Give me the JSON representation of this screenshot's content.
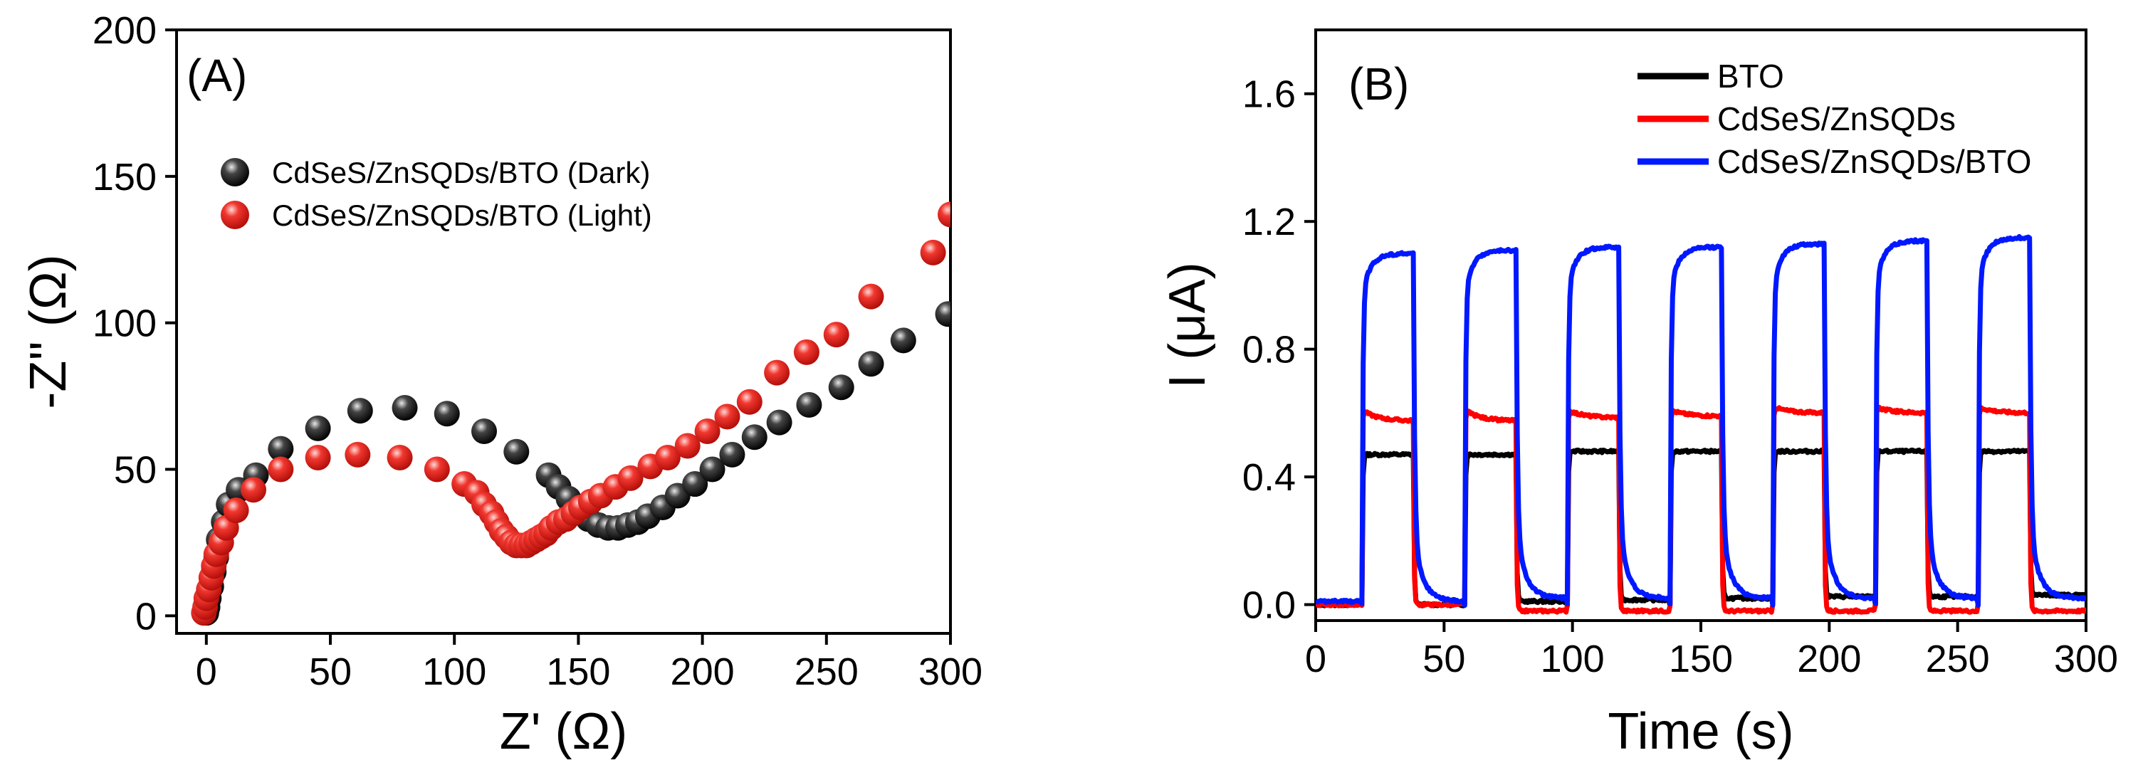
{
  "chart_data": [
    {
      "type": "scatter",
      "panel_label": "(A)",
      "xlabel": "Z' (Ω)",
      "ylabel": "-Z'' (Ω)",
      "xlim": [
        -12,
        300
      ],
      "ylim": [
        -6,
        200
      ],
      "xticks": [
        0,
        50,
        100,
        150,
        200,
        250,
        300
      ],
      "yticks": [
        0,
        50,
        100,
        150,
        200
      ],
      "legend_position": "top-left",
      "series": [
        {
          "name": "CdSeS/ZnSQDs/BTO (Dark)",
          "color": "#111111",
          "points": [
            [
              0,
              1
            ],
            [
              0.5,
              3
            ],
            [
              1,
              6
            ],
            [
              2,
              10
            ],
            [
              3,
              15
            ],
            [
              4,
              20
            ],
            [
              5,
              26
            ],
            [
              7,
              32
            ],
            [
              9,
              38
            ],
            [
              13,
              43
            ],
            [
              20,
              48
            ],
            [
              30,
              57
            ],
            [
              45,
              64
            ],
            [
              62,
              70
            ],
            [
              80,
              71
            ],
            [
              97,
              69
            ],
            [
              112,
              63
            ],
            [
              125,
              56
            ],
            [
              138,
              48
            ],
            [
              142,
              44
            ],
            [
              146,
              40
            ],
            [
              150,
              36
            ],
            [
              154,
              33
            ],
            [
              158,
              31
            ],
            [
              162,
              30
            ],
            [
              166,
              30
            ],
            [
              170,
              31
            ],
            [
              174,
              32
            ],
            [
              178,
              34
            ],
            [
              184,
              37
            ],
            [
              190,
              41
            ],
            [
              197,
              45
            ],
            [
              204,
              50
            ],
            [
              212,
              55
            ],
            [
              221,
              61
            ],
            [
              231,
              66
            ],
            [
              243,
              72
            ],
            [
              256,
              78
            ],
            [
              268,
              86
            ],
            [
              281,
              94
            ],
            [
              299,
              103
            ]
          ]
        },
        {
          "name": "CdSeS/ZnSQDs/BTO (Light)",
          "color": "#e8231a",
          "points": [
            [
              -1,
              1
            ],
            [
              -0.5,
              3
            ],
            [
              0,
              6
            ],
            [
              1,
              9
            ],
            [
              2,
              13
            ],
            [
              3,
              17
            ],
            [
              4,
              21
            ],
            [
              6,
              25
            ],
            [
              8,
              30
            ],
            [
              12,
              36
            ],
            [
              19,
              43
            ],
            [
              30,
              50
            ],
            [
              45,
              54
            ],
            [
              61,
              55
            ],
            [
              78,
              54
            ],
            [
              93,
              50
            ],
            [
              104,
              45
            ],
            [
              109,
              42
            ],
            [
              112,
              38
            ],
            [
              115,
              35
            ],
            [
              117,
              32
            ],
            [
              119,
              29
            ],
            [
              121,
              27
            ],
            [
              123,
              25
            ],
            [
              125,
              24
            ],
            [
              127,
              24
            ],
            [
              129,
              24
            ],
            [
              131,
              25
            ],
            [
              133,
              26
            ],
            [
              135,
              27
            ],
            [
              137,
              28
            ],
            [
              139,
              30
            ],
            [
              142,
              32
            ],
            [
              145,
              33
            ],
            [
              148,
              35
            ],
            [
              151,
              37
            ],
            [
              155,
              39
            ],
            [
              159,
              41
            ],
            [
              165,
              44
            ],
            [
              171,
              47
            ],
            [
              179,
              51
            ],
            [
              186,
              54
            ],
            [
              194,
              58
            ],
            [
              202,
              63
            ],
            [
              210,
              68
            ],
            [
              219,
              73
            ],
            [
              230,
              83
            ],
            [
              242,
              90
            ],
            [
              254,
              96
            ],
            [
              268,
              109
            ],
            [
              293,
              124
            ],
            [
              300,
              137
            ]
          ]
        }
      ]
    },
    {
      "type": "line",
      "panel_label": "(B)",
      "xlabel": "Time (s)",
      "ylabel": "I (μA)",
      "xlim": [
        0,
        300
      ],
      "ylim": [
        -0.05,
        1.8
      ],
      "xticks": [
        0,
        50,
        100,
        150,
        200,
        250,
        300
      ],
      "yticks": [
        "0.0",
        "0.4",
        "0.8",
        "1.2",
        "1.6"
      ],
      "legend_position": "top-right",
      "light_on_intervals": [
        [
          18,
          38
        ],
        [
          58,
          78
        ],
        [
          98,
          118
        ],
        [
          138,
          158
        ],
        [
          178,
          198
        ],
        [
          218,
          238
        ],
        [
          258,
          278
        ]
      ],
      "series": [
        {
          "name": "BTO",
          "color": "#000000",
          "dark_level": [
            0.0,
            0.01,
            0.015,
            0.02,
            0.025,
            0.025,
            0.03
          ],
          "light_level": [
            0.47,
            0.47,
            0.48,
            0.48,
            0.48,
            0.48,
            0.48
          ]
        },
        {
          "name": "CdSeS/ZnSQDs",
          "color": "#ff0000",
          "dark_level": [
            0.0,
            -0.02,
            -0.02,
            -0.02,
            -0.02,
            -0.02,
            -0.02
          ],
          "light_peak": [
            0.61,
            0.61,
            0.61,
            0.61,
            0.62,
            0.62,
            0.62
          ],
          "light_end": [
            0.575,
            0.575,
            0.585,
            0.59,
            0.6,
            0.6,
            0.6
          ]
        },
        {
          "name": "CdSeS/ZnSQDs/BTO",
          "color": "#0018ff",
          "dark_level": [
            0.01,
            0.02,
            0.02,
            0.02,
            0.02,
            0.02,
            0.02
          ],
          "light_level": [
            1.1,
            1.11,
            1.12,
            1.12,
            1.13,
            1.14,
            1.15
          ]
        }
      ]
    }
  ]
}
